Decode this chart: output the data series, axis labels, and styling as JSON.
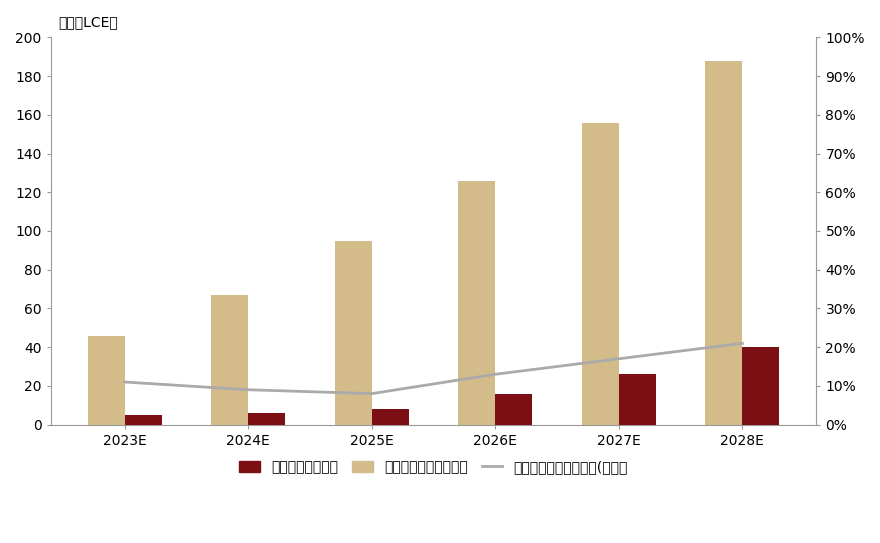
{
  "categories": [
    "2023E",
    "2024E",
    "2025E",
    "2026E",
    "2027E",
    "2028E"
  ],
  "recycled_supply": [
    5,
    6,
    8,
    16,
    26,
    40
  ],
  "battery_demand": [
    46,
    67,
    95,
    126,
    156,
    188
  ],
  "recycle_ratio": [
    0.11,
    0.09,
    0.08,
    0.13,
    0.17,
    0.21
  ],
  "bar_color_supply": "#7B0F14",
  "bar_color_demand": "#D4BC8A",
  "line_color": "#AAAAAA",
  "ylabel_left": "（万吨LCE）",
  "ylim_left": [
    0,
    200
  ],
  "ylim_right": [
    0,
    1.0
  ],
  "yticks_left": [
    0,
    20,
    40,
    60,
    80,
    100,
    120,
    140,
    160,
    180,
    200
  ],
  "yticks_right": [
    0.0,
    0.1,
    0.2,
    0.3,
    0.4,
    0.5,
    0.6,
    0.7,
    0.8,
    0.9,
    1.0
  ],
  "legend_supply": "全球锂回收供给量",
  "legend_demand": "全球动力电池锂需求量",
  "legend_line": "回收锂资源可供给比例(右轴）",
  "background_color": "#FFFFFF",
  "bar_width": 0.3,
  "label_fontsize": 10,
  "legend_fontsize": 10
}
